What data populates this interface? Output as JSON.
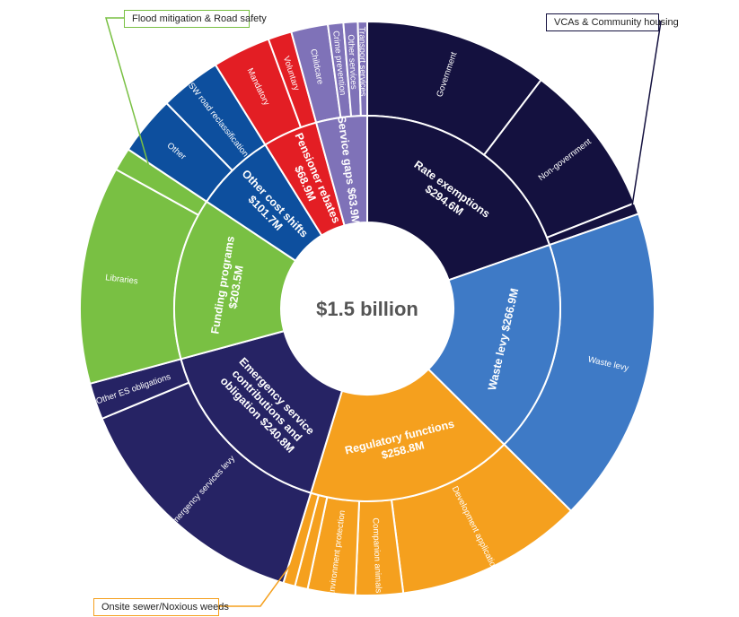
{
  "chart_data": {
    "type": "sunburst",
    "center_label": "$1.5 billion",
    "inner": [
      {
        "key": "rate",
        "label": [
          "Rate exemptions",
          "$294.6M"
        ],
        "value": 294.6,
        "color": "#14113f"
      },
      {
        "key": "waste",
        "label": [
          "Waste levy $266.9M"
        ],
        "value": 266.9,
        "color": "#3e7ac6"
      },
      {
        "key": "regulatory",
        "label": [
          "Regulatory functions",
          "$258.8M"
        ],
        "value": 258.8,
        "color": "#f5a01e"
      },
      {
        "key": "emergency",
        "label": [
          "Emergency service",
          "contributions and",
          "obligation $240.8M"
        ],
        "value": 240.8,
        "color": "#262364"
      },
      {
        "key": "funding",
        "label": [
          "Funding programs",
          "$203.5M"
        ],
        "value": 203.5,
        "color": "#79c043"
      },
      {
        "key": "cost_shifts",
        "label": [
          "Other cost shifts",
          "$101.7M"
        ],
        "value": 101.7,
        "color": "#0d4f9e"
      },
      {
        "key": "pensioner",
        "label": [
          "Pensioner rebates",
          "$68.9M"
        ],
        "value": 68.9,
        "color": "#e31e24"
      },
      {
        "key": "service_gaps",
        "label": [
          "Service gaps $63.9M"
        ],
        "value": 63.9,
        "color": "#7f72b8"
      }
    ],
    "outer": [
      {
        "parent": "rate",
        "label": "Government",
        "value": 155
      },
      {
        "parent": "rate",
        "label": "Non-government",
        "value": 130
      },
      {
        "parent": "rate",
        "label": "",
        "value": 9.6
      },
      {
        "parent": "waste",
        "label": "Waste levy",
        "value": 266.9
      },
      {
        "parent": "regulatory",
        "label": "Development applications",
        "value": 158
      },
      {
        "parent": "regulatory",
        "label": "Companion animals",
        "value": 40
      },
      {
        "parent": "regulatory",
        "label": "Environment protection",
        "value": 40
      },
      {
        "parent": "regulatory",
        "label": "",
        "value": 10.8
      },
      {
        "parent": "regulatory",
        "label": "",
        "value": 10
      },
      {
        "parent": "emergency",
        "label": "Emergency services levy",
        "value": 210
      },
      {
        "parent": "emergency",
        "label": "Other ES obligations",
        "value": 30.8
      },
      {
        "parent": "funding",
        "label": "Libraries",
        "value": 184
      },
      {
        "parent": "funding",
        "label": "",
        "value": 19.5
      },
      {
        "parent": "cost_shifts",
        "label": "Other",
        "value": 50
      },
      {
        "parent": "cost_shifts",
        "label": "TfNSW road reclassification",
        "value": 51.7
      },
      {
        "parent": "pensioner",
        "label": "Mandatory",
        "value": 49
      },
      {
        "parent": "pensioner",
        "label": "Voluntary",
        "value": 19.9
      },
      {
        "parent": "service_gaps",
        "label": "Childcare",
        "value": 31
      },
      {
        "parent": "service_gaps",
        "label": "Crime prevention",
        "value": 13
      },
      {
        "parent": "service_gaps",
        "label": "Other services",
        "value": 12
      },
      {
        "parent": "service_gaps",
        "label": "Transport services",
        "value": 7.9
      }
    ],
    "callouts": [
      {
        "label": "Flood mitigation & Road safety",
        "color": "#79c043"
      },
      {
        "label": "VCAs & Community housing",
        "color": "#14113f"
      },
      {
        "label": "Onsite sewer/Noxious weeds",
        "color": "#f5a01e"
      }
    ]
  }
}
